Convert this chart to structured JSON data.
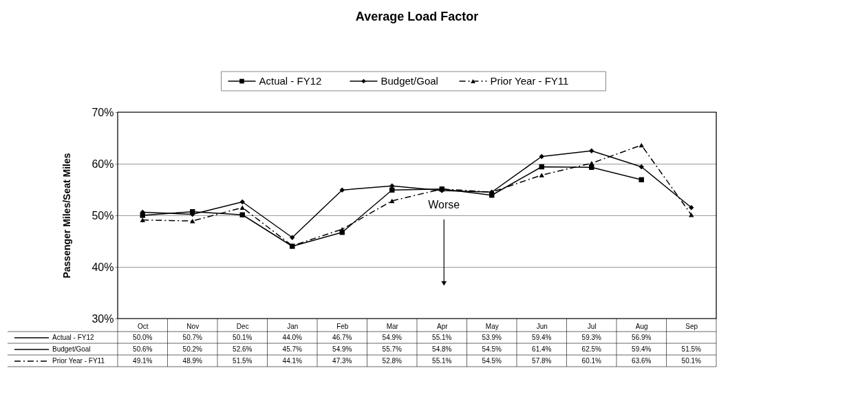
{
  "chart_data": {
    "type": "line",
    "title": "Average Load Factor",
    "ylabel": "Passenger Miles/Seat Miles",
    "categories": [
      "Oct",
      "Nov",
      "Dec",
      "Jan",
      "Feb",
      "Mar",
      "Apr",
      "May",
      "Jun",
      "Jul",
      "Aug",
      "Sep"
    ],
    "series": [
      {
        "name": "Actual - FY12",
        "color": "#000000",
        "marker": "square",
        "line_style": "solid",
        "values": [
          50.0,
          50.7,
          50.1,
          44.0,
          46.7,
          54.9,
          55.1,
          53.9,
          59.4,
          59.3,
          56.9,
          null
        ],
        "value_labels": [
          "50.0%",
          "50.7%",
          "50.1%",
          "44.0%",
          "46.7%",
          "54.9%",
          "55.1%",
          "53.9%",
          "59.4%",
          "59.3%",
          "56.9%",
          null
        ]
      },
      {
        "name": "Budget/Goal",
        "color": "#000000",
        "marker": "diamond",
        "line_style": "solid",
        "values": [
          50.6,
          50.2,
          52.6,
          45.7,
          54.9,
          55.7,
          54.8,
          54.5,
          61.4,
          62.5,
          59.4,
          51.5
        ],
        "value_labels": [
          "50.6%",
          "50.2%",
          "52.6%",
          "45.7%",
          "54.9%",
          "55.7%",
          "54.8%",
          "54.5%",
          "61.4%",
          "62.5%",
          "59.4%",
          "51.5%"
        ]
      },
      {
        "name": "Prior Year - FY11",
        "color": "#000000",
        "marker": "triangle",
        "line_style": "dashed",
        "values": [
          49.1,
          48.9,
          51.5,
          44.1,
          47.3,
          52.8,
          55.1,
          54.5,
          57.8,
          60.1,
          63.6,
          50.1
        ],
        "value_labels": [
          "49.1%",
          "48.9%",
          "51.5%",
          "44.1%",
          "47.3%",
          "52.8%",
          "55.1%",
          "54.5%",
          "57.8%",
          "60.1%",
          "63.6%",
          "50.1%"
        ]
      }
    ],
    "ylim": [
      30,
      70
    ],
    "yticks": [
      {
        "value": 30,
        "label": "30%"
      },
      {
        "value": 40,
        "label": "40%"
      },
      {
        "value": 50,
        "label": "50%"
      },
      {
        "value": 60,
        "label": "60%"
      },
      {
        "value": 70,
        "label": "70%"
      }
    ],
    "grid": "y",
    "legend": "top",
    "annotations": [
      "Worse"
    ]
  }
}
